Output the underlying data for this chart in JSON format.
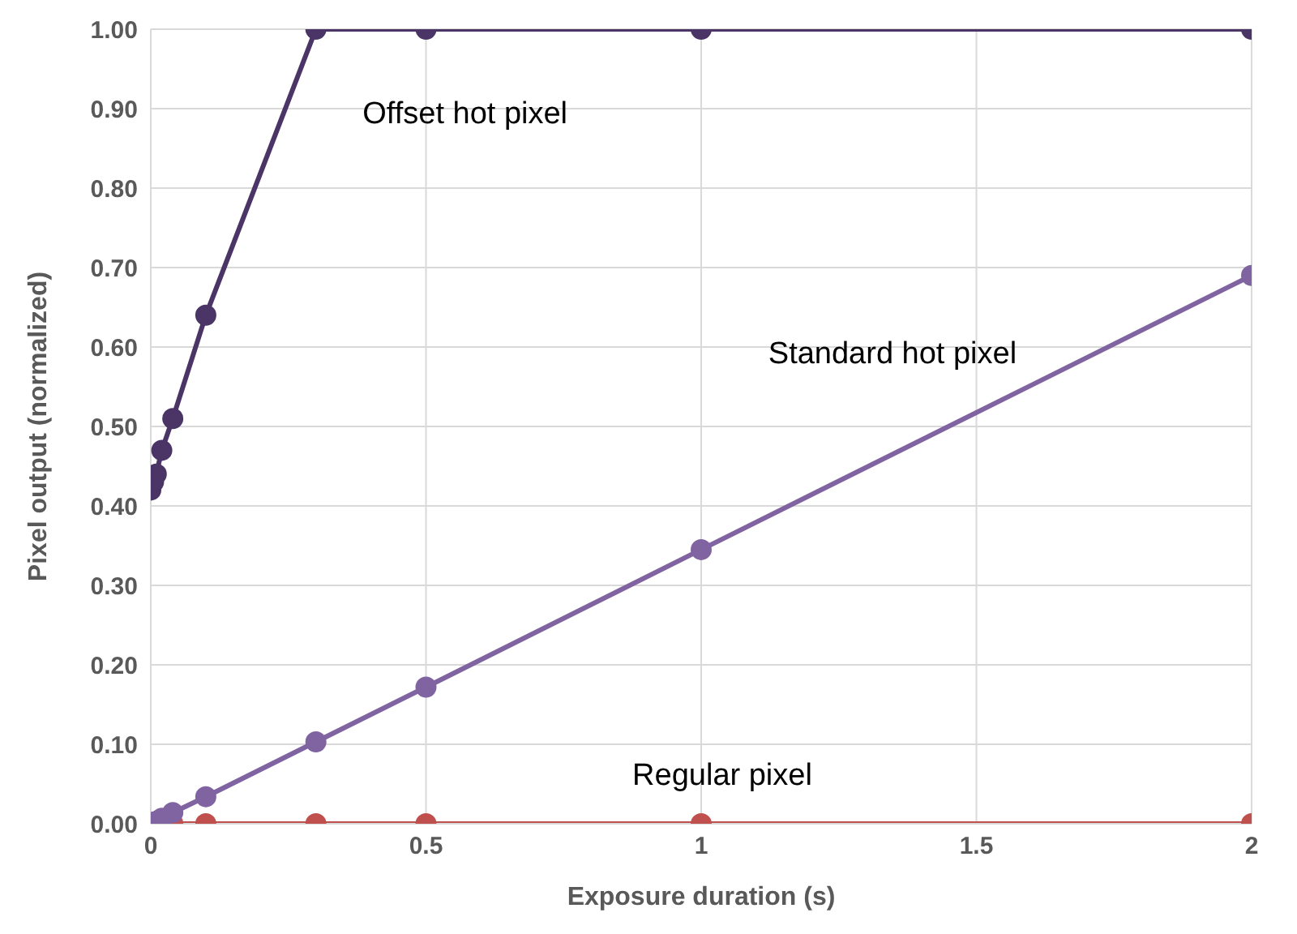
{
  "chart_data": {
    "type": "line",
    "xlabel": "Exposure duration (s)",
    "ylabel": "Pixel output (normalized)",
    "x": [
      0,
      0.005,
      0.01,
      0.02,
      0.04,
      0.1,
      0.3,
      0.5,
      1,
      2
    ],
    "series": [
      {
        "name": "Offset hot pixel",
        "color": "#4a3566",
        "values": [
          0.42,
          0.43,
          0.44,
          0.47,
          0.51,
          0.64,
          1,
          1,
          1,
          1
        ]
      },
      {
        "name": "Standard hot pixel",
        "color": "#8064a2",
        "values": [
          0,
          0.002,
          0.003,
          0.007,
          0.014,
          0.034,
          0.103,
          0.172,
          0.345,
          0.69
        ]
      },
      {
        "name": "Regular pixel",
        "color": "#c0504d",
        "values": [
          null,
          null,
          0,
          0,
          0,
          0,
          0,
          0,
          0,
          0
        ]
      }
    ],
    "xlim": [
      0,
      2
    ],
    "xticks": [
      0,
      0.5,
      1,
      1.5,
      2
    ],
    "ylim": [
      0,
      1
    ],
    "yticks": [
      {
        "value": 0,
        "label": "0.00"
      },
      {
        "value": 0.1,
        "label": "0.10"
      },
      {
        "value": 0.2,
        "label": "0.20"
      },
      {
        "value": 0.3,
        "label": "0.30"
      },
      {
        "value": 0.4,
        "label": "0.40"
      },
      {
        "value": 0.5,
        "label": "0.50"
      },
      {
        "value": 0.6,
        "label": "0.60"
      },
      {
        "value": 0.7,
        "label": "0.70"
      },
      {
        "value": 0.8,
        "label": "0.80"
      },
      {
        "value": 0.9,
        "label": "0.90"
      },
      {
        "value": 1,
        "label": "1.00"
      }
    ],
    "grid": true,
    "marker": "circle",
    "line_style": "solid"
  }
}
